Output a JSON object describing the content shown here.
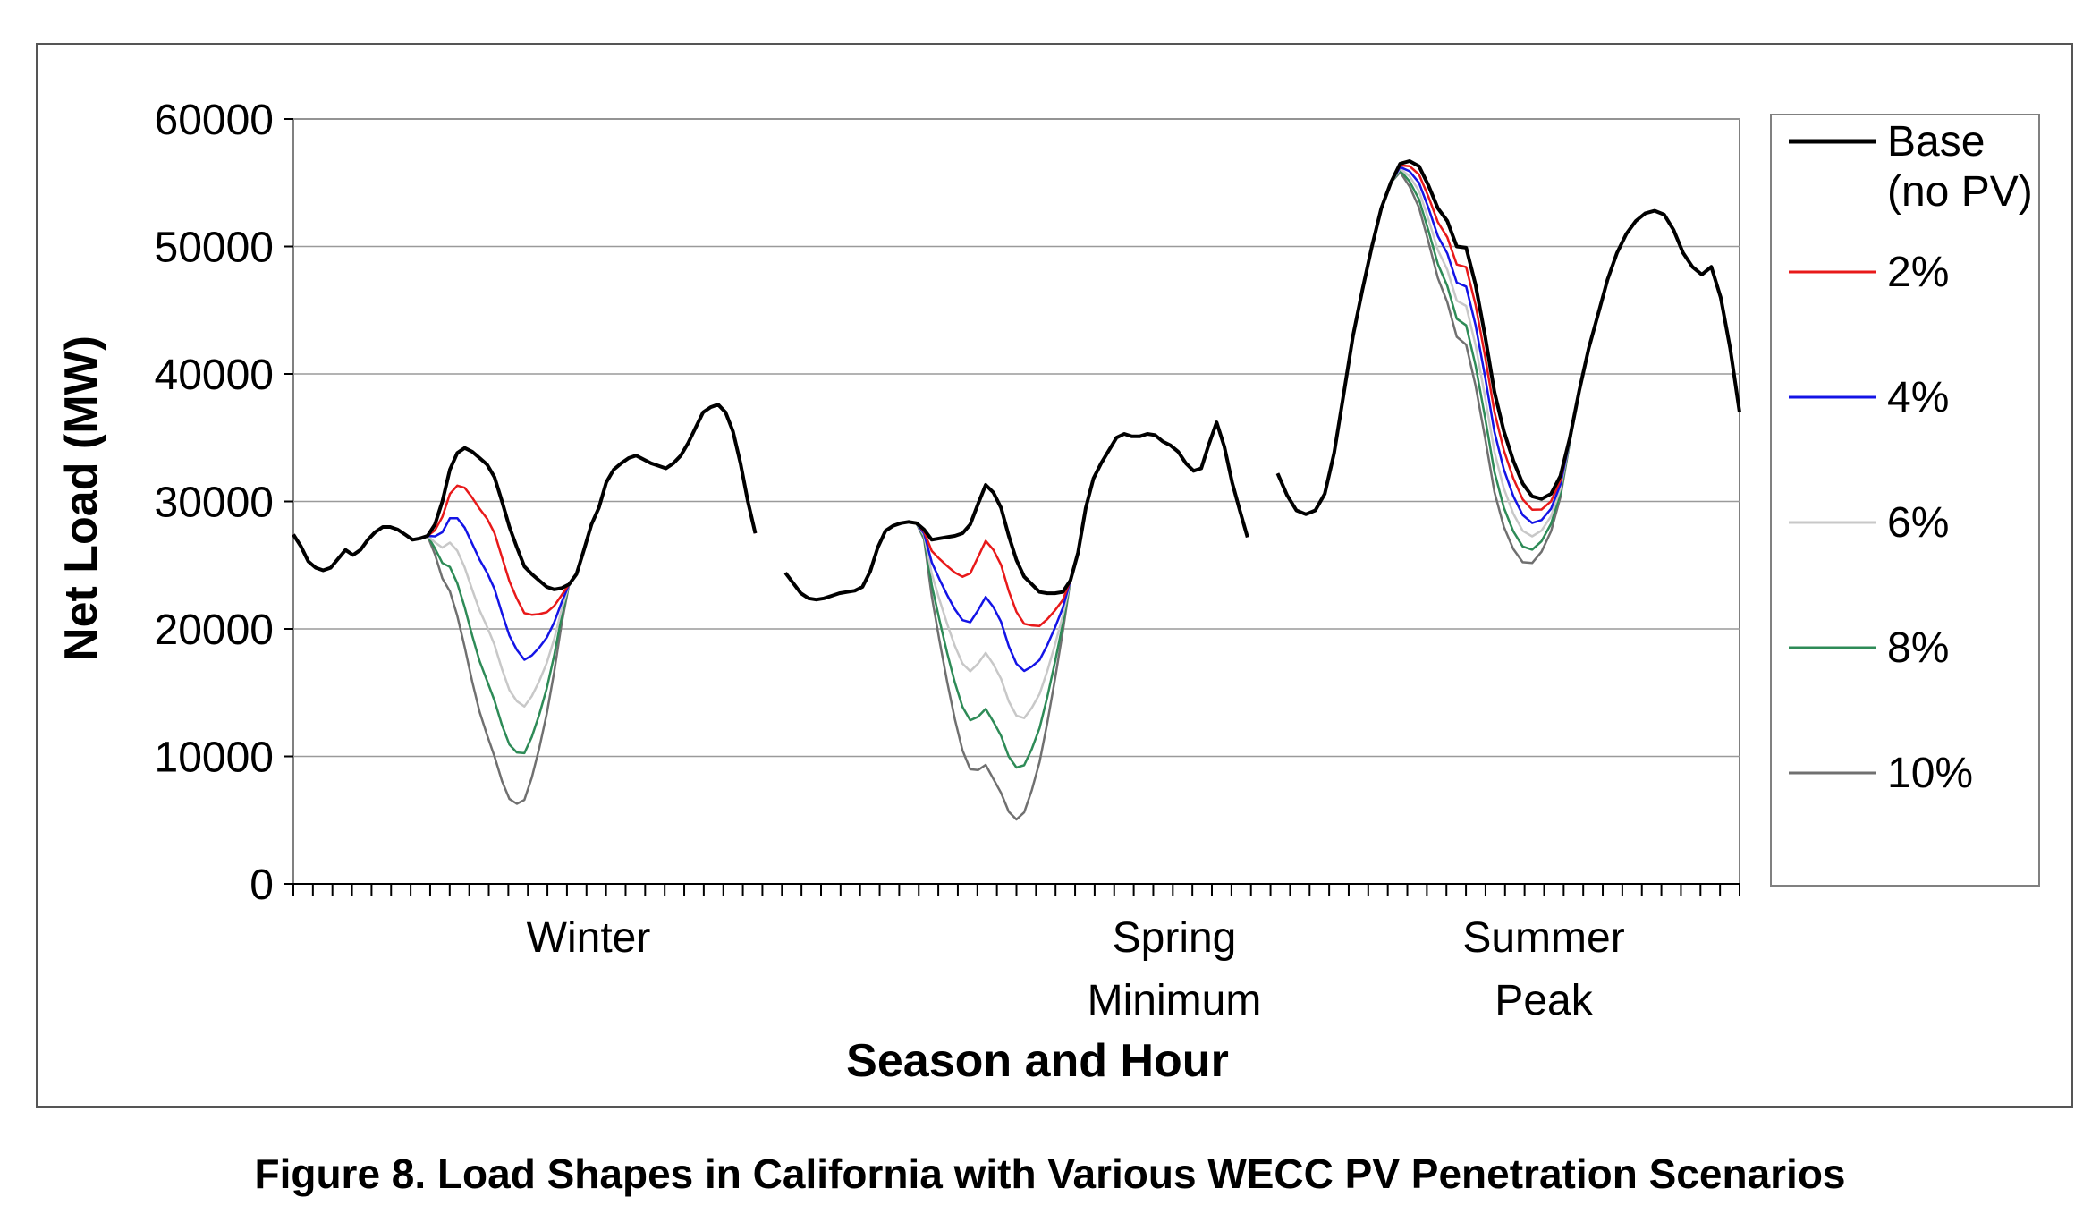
{
  "caption": "Figure 8. Load Shapes in California with Various WECC PV Penetration Scenarios",
  "chart_data": {
    "type": "line",
    "title": "",
    "xlabel": "Season and Hour",
    "ylabel": "Net Load (MW)",
    "ylim": [
      0,
      60000
    ],
    "yticks": [
      "0",
      "10000",
      "20000",
      "30000",
      "40000",
      "50000",
      "60000"
    ],
    "grid": true,
    "legend": "right",
    "categories": [
      {
        "label_lines": [
          "Winter"
        ],
        "x": 8.5
      },
      {
        "label_lines": [
          "Spring",
          "Minimum"
        ],
        "x": 24.5
      },
      {
        "label_lines": [
          "Summer",
          "Peak"
        ],
        "x": 34.5
      }
    ],
    "x_segments": [
      {
        "start": 0,
        "end": 23
      },
      {
        "start": 24.5,
        "end": 47.5
      },
      {
        "start": 49,
        "end": 72
      }
    ],
    "series": [
      {
        "name": "Base\n(no PV)",
        "color": "#000000",
        "width": 4,
        "winter": [
          27400,
          26500,
          25300,
          24800,
          24600,
          24800,
          25500,
          26200,
          25800,
          26200,
          27000,
          27600,
          28000,
          28000,
          27800,
          27400,
          27000,
          27100,
          27300,
          28200,
          30000,
          32500,
          33800,
          34200,
          33900,
          33400,
          32900,
          31900,
          30000,
          28000,
          26400,
          24900,
          24300,
          23800,
          23300,
          23100,
          23200,
          23500,
          24300,
          26200,
          28200,
          29500,
          31500,
          32500,
          33000,
          33400,
          33600,
          33300,
          33000,
          32800,
          32600,
          33000,
          33600,
          34600,
          35800,
          37000,
          37400,
          37600,
          37000,
          35500,
          33000,
          30000,
          27500
        ],
        "spring": [
          24400,
          23600,
          22800,
          22400,
          22300,
          22400,
          22600,
          22800,
          22900,
          23000,
          23300,
          24500,
          26400,
          27700,
          28100,
          28300,
          28400,
          28300,
          27800,
          27000,
          27100,
          27200,
          27300,
          27500,
          28200,
          29800,
          31300,
          30700,
          29500,
          27300,
          25400,
          24100,
          23500,
          22900,
          22800,
          22800,
          22900,
          23800,
          26000,
          29500,
          31800,
          33000,
          34000,
          35000,
          35300,
          35100,
          35100,
          35300,
          35200,
          34700,
          34400,
          33900,
          33000,
          32400,
          32600,
          34500,
          36200,
          34300,
          31500,
          29300,
          27200
        ],
        "summer": [
          32200,
          30500,
          29300,
          29000,
          29300,
          30600,
          33800,
          38400,
          43000,
          46600,
          50000,
          53000,
          55000,
          56500,
          56700,
          56300,
          54800,
          53000,
          52000,
          50000,
          49900,
          47000,
          43000,
          38600,
          35500,
          33200,
          31400,
          30400,
          30200,
          30600,
          32000,
          35000,
          38700,
          42000,
          44700,
          47400,
          49500,
          51000,
          52000,
          52600,
          52800,
          52500,
          51300,
          49500,
          48400,
          47800,
          48400,
          46000,
          42000,
          37000
        ],
        "spring_off": 24.5,
        "winter_off": 0,
        "summer_off": 49
      },
      {
        "name": "2%",
        "color": "#e8191a",
        "width": 2.5
      },
      {
        "name": "4%",
        "color": "#1414e6",
        "width": 2.5
      },
      {
        "name": "6%",
        "color": "#c8c8c8",
        "width": 2.5
      },
      {
        "name": "8%",
        "color": "#2e8b57",
        "width": 2.5
      },
      {
        "name": "10%",
        "color": "#707070",
        "width": 2.5
      }
    ],
    "solar_dip_peak_fraction_per_2pct": [
      0.11,
      0.22,
      0.33,
      0.44,
      0.55
    ]
  }
}
